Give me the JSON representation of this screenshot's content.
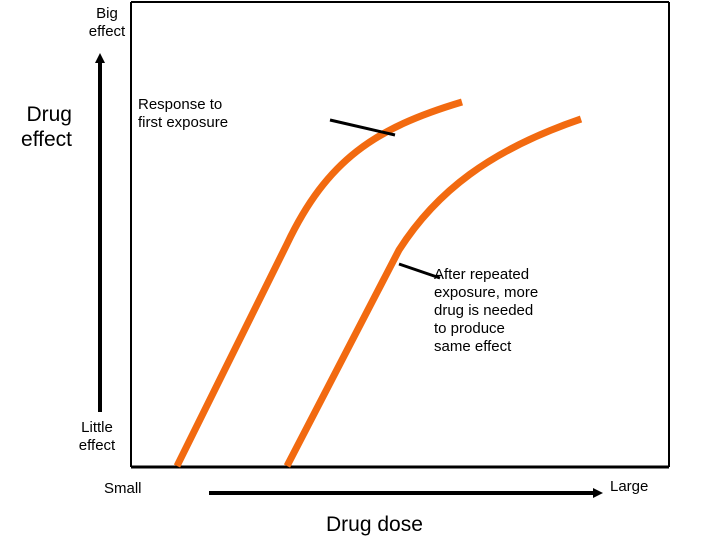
{
  "y_axis": {
    "title_line1": "Drug",
    "title_line2": "effect",
    "top_line1": "Big",
    "top_line2": "effect",
    "bottom_line1": "Little",
    "bottom_line2": "effect"
  },
  "x_axis": {
    "title": "Drug dose",
    "left": "Small",
    "right": "Large"
  },
  "annotations": {
    "first_line1": "Response to",
    "first_line2": "first exposure",
    "repeated_lines": [
      "After repeated",
      "exposure, more",
      "drug is needed",
      "to produce",
      "same effect"
    ]
  },
  "colors": {
    "curve": "#F26A10",
    "axes": "#000000"
  }
}
